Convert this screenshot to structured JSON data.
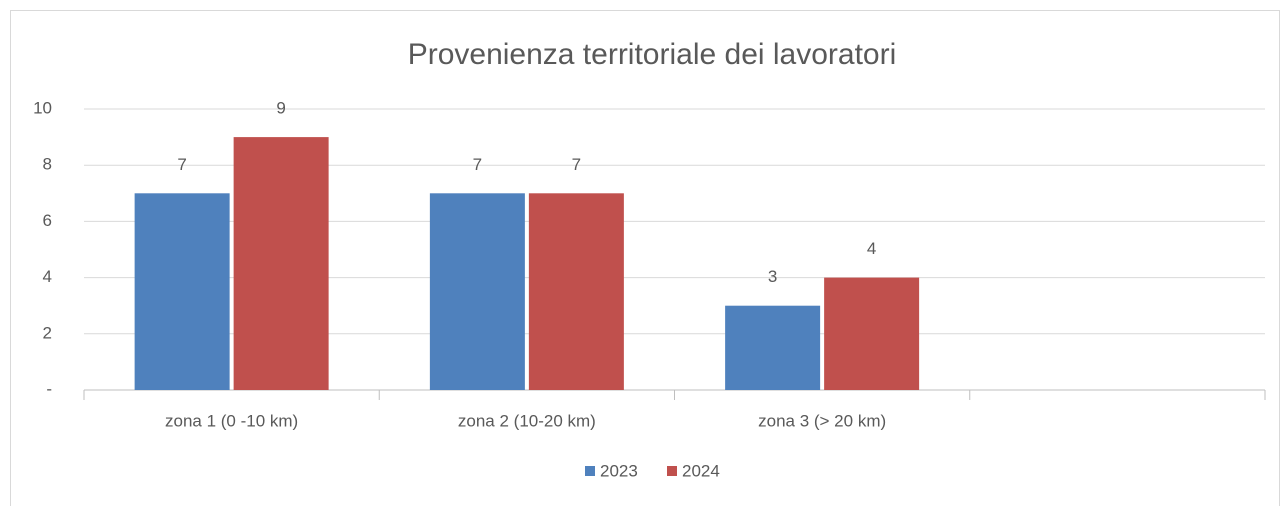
{
  "chart_data": {
    "type": "bar",
    "title": "Provenienza territoriale dei lavoratori",
    "categories": [
      "zona 1 (0 -10 km)",
      "zona 2 (10-20 km)",
      "zona 3 (> 20 km)",
      null
    ],
    "series": [
      {
        "name": "2023",
        "color": "#4f81bd",
        "values": [
          7,
          7,
          3,
          null
        ]
      },
      {
        "name": "2024",
        "color": "#c0504d",
        "values": [
          9,
          7,
          4,
          null
        ]
      }
    ],
    "ylim": [
      0,
      10
    ],
    "yticks": [
      {
        "value": 0,
        "label": "-"
      },
      2,
      4,
      6,
      8,
      10
    ],
    "grid": true,
    "legend": "bottom"
  }
}
